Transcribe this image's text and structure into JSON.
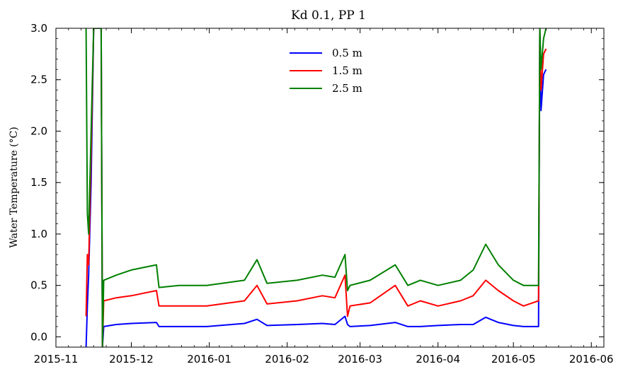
{
  "chart_data": {
    "type": "line",
    "title": "Kd 0.1, PP 1",
    "xlabel": "",
    "ylabel": "Water Temperature (°C)",
    "xlim": [
      "2015-11-01",
      "2016-06-06"
    ],
    "ylim": [
      -0.1,
      3.0
    ],
    "x_ticks": [
      "2015-11",
      "2015-12",
      "2016-01",
      "2016-02",
      "2016-03",
      "2016-04",
      "2016-05",
      "2016-06"
    ],
    "x_tick_dates": [
      "2015-11-01",
      "2015-12-01",
      "2016-01-01",
      "2016-02-01",
      "2016-03-01",
      "2016-04-01",
      "2016-05-01",
      "2016-06-01"
    ],
    "y_ticks": [
      "0.0",
      "0.5",
      "1.0",
      "1.5",
      "2.0",
      "2.5",
      "3.0"
    ],
    "y_tick_values": [
      0.0,
      0.5,
      1.0,
      1.5,
      2.0,
      2.5,
      3.0
    ],
    "grid": false,
    "legend_position": "top-center",
    "series": [
      {
        "name": "0.5 m",
        "color": "#0000ff",
        "x": [
          "2015-11-13",
          "2015-11-13T12",
          "2015-11-14",
          "2015-11-15",
          "2015-11-16",
          "2015-11-19",
          "2015-11-19T12",
          "2015-11-20",
          "2015-11-25",
          "2015-12-01",
          "2015-12-11",
          "2015-12-12",
          "2015-12-20",
          "2015-12-31",
          "2016-01-15",
          "2016-01-20",
          "2016-01-24",
          "2016-02-05",
          "2016-02-15",
          "2016-02-20",
          "2016-02-24",
          "2016-02-25",
          "2016-02-26",
          "2016-03-05",
          "2016-03-15",
          "2016-03-20",
          "2016-03-25",
          "2016-04-01",
          "2016-04-10",
          "2016-04-15",
          "2016-04-20",
          "2016-04-25",
          "2016-05-01",
          "2016-05-05",
          "2016-05-11",
          "2016-05-11T12",
          "2016-05-12",
          "2016-05-13",
          "2016-05-14"
        ],
        "values": [
          -0.1,
          0.3,
          0.6,
          1.5,
          3.0,
          3.0,
          -0.1,
          0.1,
          0.12,
          0.13,
          0.14,
          0.1,
          0.1,
          0.1,
          0.13,
          0.17,
          0.11,
          0.12,
          0.13,
          0.12,
          0.2,
          0.12,
          0.1,
          0.11,
          0.14,
          0.1,
          0.1,
          0.11,
          0.12,
          0.12,
          0.19,
          0.14,
          0.11,
          0.1,
          0.1,
          3.0,
          2.2,
          2.55,
          2.6
        ]
      },
      {
        "name": "1.5 m",
        "color": "#ff0000",
        "x": [
          "2015-11-13",
          "2015-11-13T12",
          "2015-11-14",
          "2015-11-15",
          "2015-11-16",
          "2015-11-19",
          "2015-11-19T12",
          "2015-11-20",
          "2015-11-25",
          "2015-12-01",
          "2015-12-11",
          "2015-12-12",
          "2015-12-20",
          "2015-12-31",
          "2016-01-15",
          "2016-01-20",
          "2016-01-24",
          "2016-02-05",
          "2016-02-15",
          "2016-02-20",
          "2016-02-24",
          "2016-02-25",
          "2016-02-26",
          "2016-03-05",
          "2016-03-15",
          "2016-03-20",
          "2016-03-25",
          "2016-04-01",
          "2016-04-10",
          "2016-04-15",
          "2016-04-20",
          "2016-04-25",
          "2016-05-01",
          "2016-05-05",
          "2016-05-11",
          "2016-05-11T12",
          "2016-05-12",
          "2016-05-13",
          "2016-05-14"
        ],
        "values": [
          0.2,
          0.8,
          0.7,
          1.8,
          3.0,
          3.0,
          -0.1,
          0.35,
          0.38,
          0.4,
          0.45,
          0.3,
          0.3,
          0.3,
          0.35,
          0.5,
          0.32,
          0.35,
          0.4,
          0.38,
          0.6,
          0.2,
          0.3,
          0.33,
          0.5,
          0.3,
          0.35,
          0.3,
          0.35,
          0.4,
          0.55,
          0.45,
          0.35,
          0.3,
          0.35,
          3.0,
          2.4,
          2.75,
          2.8
        ]
      },
      {
        "name": "2.5 m",
        "color": "#008000",
        "x": [
          "2015-11-13",
          "2015-11-13T12",
          "2015-11-14",
          "2015-11-15",
          "2015-11-16",
          "2015-11-19",
          "2015-11-19T12",
          "2015-11-20",
          "2015-11-25",
          "2015-12-01",
          "2015-12-11",
          "2015-12-12",
          "2015-12-20",
          "2015-12-31",
          "2016-01-15",
          "2016-01-20",
          "2016-01-24",
          "2016-02-05",
          "2016-02-15",
          "2016-02-20",
          "2016-02-24",
          "2016-02-25",
          "2016-02-26",
          "2016-03-05",
          "2016-03-15",
          "2016-03-20",
          "2016-03-25",
          "2016-04-01",
          "2016-04-10",
          "2016-04-15",
          "2016-04-20",
          "2016-04-25",
          "2016-05-01",
          "2016-05-05",
          "2016-05-11",
          "2016-05-11T12",
          "2016-05-12",
          "2016-05-13",
          "2016-05-14"
        ],
        "values": [
          3.0,
          1.2,
          1.0,
          2.0,
          3.0,
          3.0,
          -0.1,
          0.55,
          0.6,
          0.65,
          0.7,
          0.48,
          0.5,
          0.5,
          0.55,
          0.75,
          0.52,
          0.55,
          0.6,
          0.58,
          0.8,
          0.45,
          0.5,
          0.55,
          0.7,
          0.5,
          0.55,
          0.5,
          0.55,
          0.65,
          0.9,
          0.7,
          0.55,
          0.5,
          0.5,
          3.0,
          2.6,
          2.9,
          3.0
        ]
      }
    ]
  }
}
